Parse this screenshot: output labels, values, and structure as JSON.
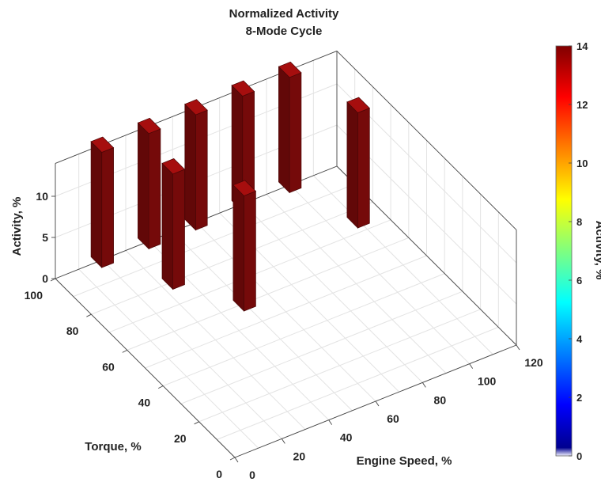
{
  "chart_data": {
    "type": "bar3d",
    "title": "Normalized Activity",
    "subtitle": "8-Mode Cycle",
    "xlabel": "Engine Speed, %",
    "ylabel": "Torque, %",
    "zlabel": "Activity, %",
    "x_ticks": [
      "0",
      "20",
      "40",
      "60",
      "80",
      "100",
      "120"
    ],
    "y_ticks": [
      "0",
      "20",
      "40",
      "60",
      "80",
      "100"
    ],
    "z_ticks": [
      "0",
      "5",
      "10"
    ],
    "xlim": [
      0,
      120
    ],
    "ylim": [
      0,
      100
    ],
    "zlim": [
      0,
      14
    ],
    "bar_color": "#7b0a0a",
    "points": [
      {
        "speed": 20,
        "torque": 100,
        "activity": 14
      },
      {
        "speed": 40,
        "torque": 100,
        "activity": 14
      },
      {
        "speed": 60,
        "torque": 100,
        "activity": 14
      },
      {
        "speed": 80,
        "torque": 100,
        "activity": 14
      },
      {
        "speed": 100,
        "torque": 100,
        "activity": 14
      },
      {
        "speed": 35,
        "torque": 80,
        "activity": 14
      },
      {
        "speed": 50,
        "torque": 60,
        "activity": 14
      },
      {
        "speed": 110,
        "torque": 75,
        "activity": 14
      }
    ],
    "grid": true,
    "colorbar": {
      "label": "Activity, %",
      "range": [
        0,
        14
      ],
      "ticks": [
        "0",
        "2",
        "4",
        "6",
        "8",
        "10",
        "12",
        "14"
      ],
      "colormap": "jet"
    }
  }
}
